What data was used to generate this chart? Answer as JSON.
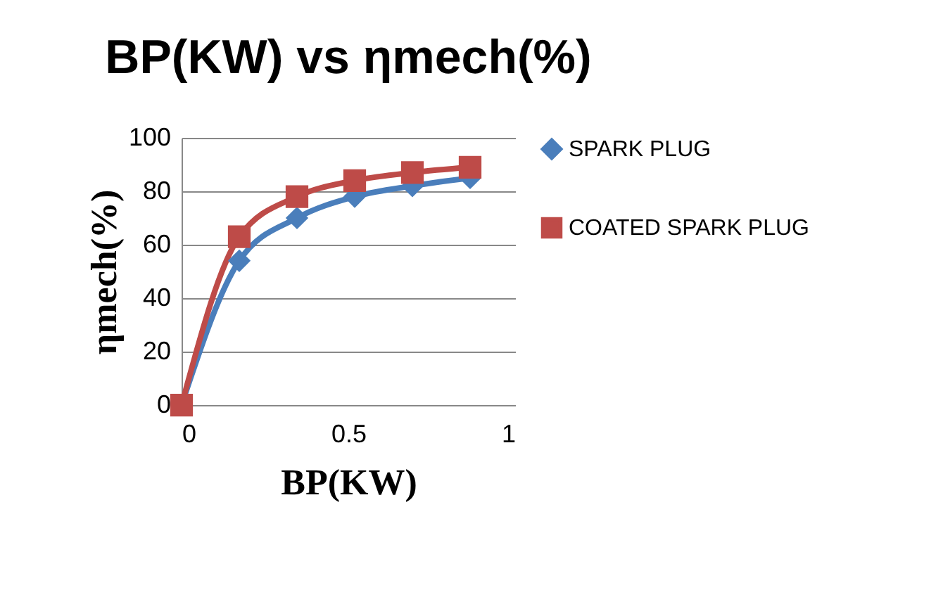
{
  "chart_data": {
    "type": "line",
    "title": "BP(KW) vs ηmech(%)",
    "xlabel": "BP(KW)",
    "ylabel": "ηmech(%)",
    "x": [
      0,
      0.173,
      0.346,
      0.519,
      0.692,
      0.865
    ],
    "series": [
      {
        "name": "SPARK PLUG",
        "color": "#4a7ebb",
        "marker": "diamond",
        "values": [
          0,
          54,
          70,
          78,
          82,
          85
        ]
      },
      {
        "name": "COATED SPARK PLUG",
        "color": "#be4b48",
        "marker": "square",
        "values": [
          0,
          63,
          78,
          84,
          87,
          89
        ]
      }
    ],
    "xlim": [
      0,
      1
    ],
    "xticks": [
      0,
      0.5,
      1
    ],
    "ylim": [
      0,
      100
    ],
    "yticks": [
      0,
      20,
      40,
      60,
      80,
      100
    ],
    "grid": "y",
    "legend": "right",
    "line_style": "solid"
  }
}
